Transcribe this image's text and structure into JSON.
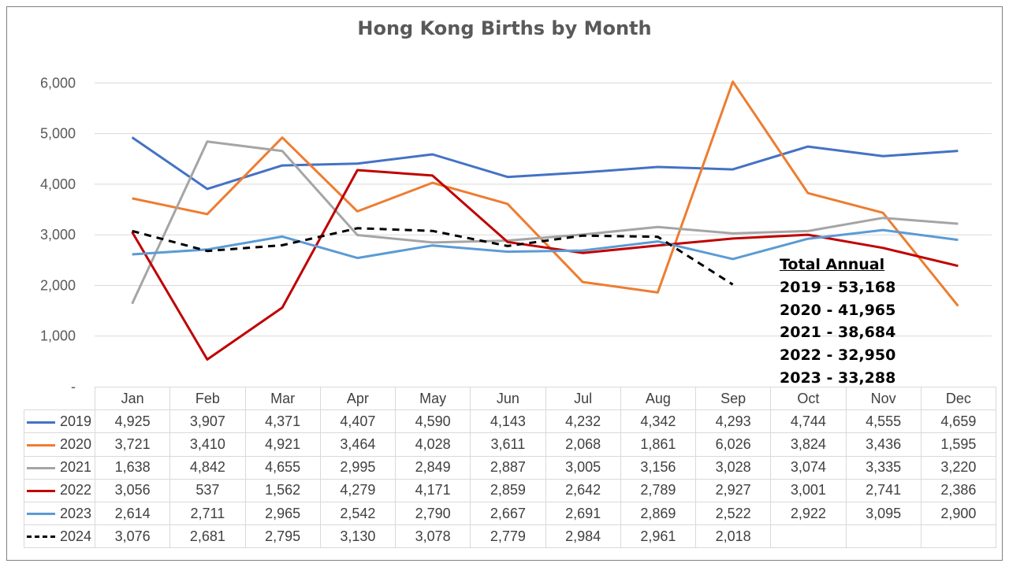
{
  "chart_data": {
    "type": "line",
    "title": "Hong Kong Births by Month",
    "categories": [
      "Jan",
      "Feb",
      "Mar",
      "Apr",
      "May",
      "Jun",
      "Jul",
      "Aug",
      "Sep",
      "Oct",
      "Nov",
      "Dec"
    ],
    "ylim": [
      0,
      6000
    ],
    "yticks": [
      "-",
      "1,000",
      "2,000",
      "3,000",
      "4,000",
      "5,000",
      "6,000"
    ],
    "grid": true,
    "legend": "data table below the chart",
    "series": [
      {
        "name": "2019",
        "color": "#4472c4",
        "style": "solid",
        "values": [
          4925,
          3907,
          4371,
          4407,
          4590,
          4143,
          4232,
          4342,
          4293,
          4744,
          4555,
          4659
        ],
        "labels": [
          "4,925",
          "3,907",
          "4,371",
          "4,407",
          "4,590",
          "4,143",
          "4,232",
          "4,342",
          "4,293",
          "4,744",
          "4,555",
          "4,659"
        ]
      },
      {
        "name": "2020",
        "color": "#ed7d31",
        "style": "solid",
        "values": [
          3721,
          3410,
          4921,
          3464,
          4028,
          3611,
          2068,
          1861,
          6026,
          3824,
          3436,
          1595
        ],
        "labels": [
          "3,721",
          "3,410",
          "4,921",
          "3,464",
          "4,028",
          "3,611",
          "2,068",
          "1,861",
          "6,026",
          "3,824",
          "3,436",
          "1,595"
        ]
      },
      {
        "name": "2021",
        "color": "#a5a5a5",
        "style": "solid",
        "values": [
          1638,
          4842,
          4655,
          2995,
          2849,
          2887,
          3005,
          3156,
          3028,
          3074,
          3335,
          3220
        ],
        "labels": [
          "1,638",
          "4,842",
          "4,655",
          "2,995",
          "2,849",
          "2,887",
          "3,005",
          "3,156",
          "3,028",
          "3,074",
          "3,335",
          "3,220"
        ]
      },
      {
        "name": "2022",
        "color": "#c00000",
        "style": "solid",
        "values": [
          3056,
          537,
          1562,
          4279,
          4171,
          2859,
          2642,
          2789,
          2927,
          3001,
          2741,
          2386
        ],
        "labels": [
          "3,056",
          "537",
          "1,562",
          "4,279",
          "4,171",
          "2,859",
          "2,642",
          "2,789",
          "2,927",
          "3,001",
          "2,741",
          "2,386"
        ]
      },
      {
        "name": "2023",
        "color": "#5b9bd5",
        "style": "solid",
        "values": [
          2614,
          2711,
          2965,
          2542,
          2790,
          2667,
          2691,
          2869,
          2522,
          2922,
          3095,
          2900
        ],
        "labels": [
          "2,614",
          "2,711",
          "2,965",
          "2,542",
          "2,790",
          "2,667",
          "2,691",
          "2,869",
          "2,522",
          "2,922",
          "3,095",
          "2,900"
        ]
      },
      {
        "name": "2024",
        "color": "#000000",
        "style": "dashed",
        "values": [
          3076,
          2681,
          2795,
          3130,
          3078,
          2779,
          2984,
          2961,
          2018,
          null,
          null,
          null
        ],
        "labels": [
          "3,076",
          "2,681",
          "2,795",
          "3,130",
          "3,078",
          "2,779",
          "2,984",
          "2,961",
          "2,018",
          "",
          "",
          ""
        ]
      }
    ],
    "annotation": {
      "heading": "Total Annual",
      "lines": [
        "2019 - 53,168",
        "2020 - 41,965",
        "2021 - 38,684",
        "2022 - 32,950",
        "2023 - 33,288"
      ]
    }
  }
}
